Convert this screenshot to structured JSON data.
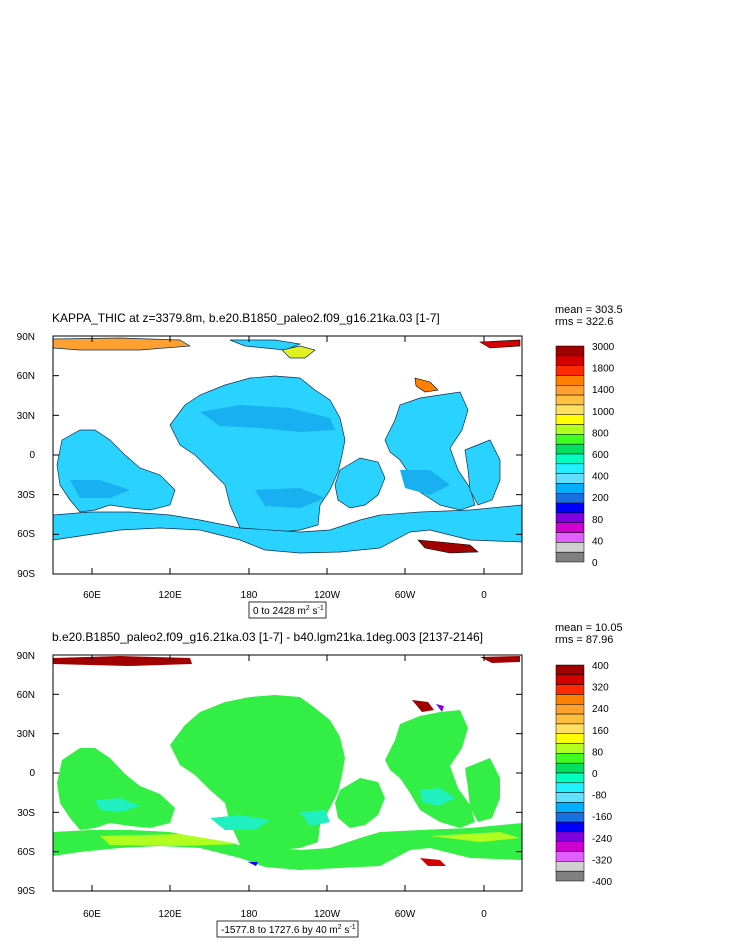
{
  "chart_data": [
    {
      "type": "heatmap",
      "title": "KAPPA_THIC at z=3379.8m, b.e20.B1850_paleo2.f09_g16.21ka.03 [1-7]",
      "stats": {
        "mean": "mean = 303.5",
        "rms": "rms = 322.6"
      },
      "range_label": {
        "prefix": "0 to 2428 m",
        "sup1": "2",
        "mid": " s",
        "sup2": "-1"
      },
      "y_ticks": [
        "90N",
        "60N",
        "30N",
        "0",
        "30S",
        "60S",
        "90S"
      ],
      "x_ticks": [
        "60E",
        "120E",
        "180",
        "120W",
        "60W",
        "0"
      ],
      "colorbar": {
        "labels": [
          "3000",
          "1800",
          "1400",
          "1000",
          "800",
          "600",
          "400",
          "200",
          "80",
          "40",
          "0"
        ],
        "colors": [
          "#a00000",
          "#d40000",
          "#ff2a00",
          "#ff7f00",
          "#ffa030",
          "#ffc040",
          "#ffe060",
          "#ffff00",
          "#b0ff20",
          "#40ff20",
          "#00e060",
          "#00ffc0",
          "#20f0ff",
          "#60dfff",
          "#00b0ff",
          "#1870e0",
          "#0000ff",
          "#8000e0",
          "#d000d0",
          "#e060ff",
          "#d0d0d0",
          "#808080"
        ]
      }
    },
    {
      "type": "heatmap",
      "title": "b.e20.B1850_paleo2.f09_g16.21ka.03 [1-7] - b40.lgm21ka.1deg.003 [2137-2146]",
      "stats": {
        "mean": "mean = 10.05",
        "rms": "rms = 87.96"
      },
      "range_label": {
        "prefix": "-1577.8 to 1727.6 by 40 m",
        "sup1": "2",
        "mid": " s",
        "sup2": "-1"
      },
      "y_ticks": [
        "90N",
        "60N",
        "30N",
        "0",
        "30S",
        "60S",
        "90S"
      ],
      "x_ticks": [
        "60E",
        "120E",
        "180",
        "120W",
        "60W",
        "0"
      ],
      "colorbar": {
        "labels": [
          "400",
          "320",
          "240",
          "160",
          "80",
          "0",
          "-80",
          "-160",
          "-240",
          "-320",
          "-400"
        ],
        "colors": [
          "#a00000",
          "#d40000",
          "#ff2a00",
          "#ff7f00",
          "#ffa030",
          "#ffc040",
          "#ffe060",
          "#ffff00",
          "#b0ff20",
          "#40ff20",
          "#00e060",
          "#00ffc0",
          "#20f0ff",
          "#60dfff",
          "#00b0ff",
          "#1870e0",
          "#0000ff",
          "#8000e0",
          "#d000d0",
          "#e060ff",
          "#d0d0d0",
          "#808080"
        ]
      }
    }
  ],
  "colors": {
    "ocean_top": "#2ad2ff",
    "ocean_top_dark": "#18b0f0",
    "ocean_bottom": "#33ee44",
    "ocean_bottom_cyan": "#20f0c0"
  }
}
